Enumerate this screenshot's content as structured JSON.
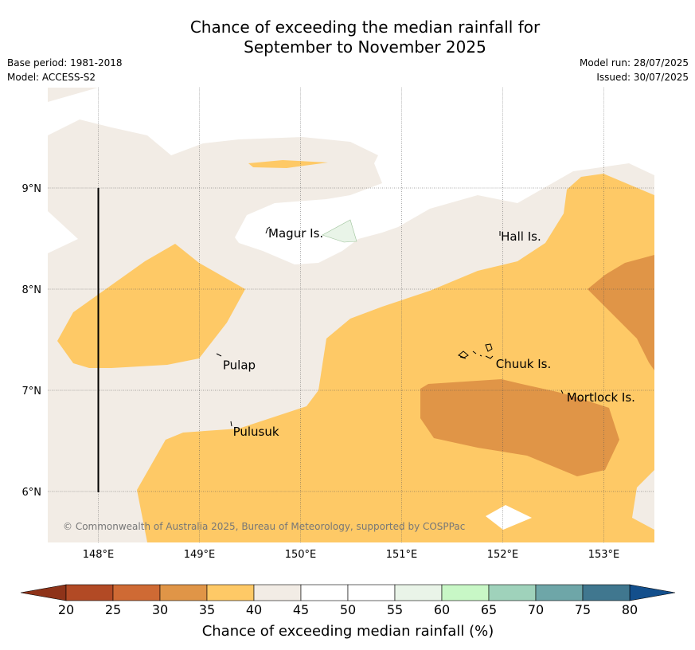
{
  "title": {
    "line1": "Chance of exceeding the median rainfall for",
    "line2": "September to November 2025"
  },
  "meta": {
    "base_period": "Base period: 1981-2018",
    "model": "Model: ACCESS-S2",
    "model_run": "Model run: 28/07/2025",
    "issued": "Issued: 30/07/2025"
  },
  "map": {
    "lon_ticks": [
      {
        "value": 148,
        "label": "148°E"
      },
      {
        "value": 149,
        "label": "149°E"
      },
      {
        "value": 150,
        "label": "150°E"
      },
      {
        "value": 151,
        "label": "151°E"
      },
      {
        "value": 152,
        "label": "152°E"
      },
      {
        "value": 153,
        "label": "153°E"
      }
    ],
    "lat_ticks": [
      {
        "value": 9,
        "label": "9°N"
      },
      {
        "value": 8,
        "label": "8°N"
      },
      {
        "value": 7,
        "label": "7°N"
      },
      {
        "value": 6,
        "label": "6°N"
      }
    ],
    "places": [
      {
        "name": "Magur Is.",
        "lon": 149.65,
        "lat": 8.55
      },
      {
        "name": "Hall Is.",
        "lon": 151.95,
        "lat": 8.52
      },
      {
        "name": "Pulap",
        "lon": 149.2,
        "lat": 7.25
      },
      {
        "name": "Chuuk Is.",
        "lon": 151.9,
        "lat": 7.26
      },
      {
        "name": "Mortlock Is.",
        "lon": 152.6,
        "lat": 6.93
      },
      {
        "name": "Pulusuk",
        "lon": 149.3,
        "lat": 6.59
      }
    ],
    "copyright": "© Commonwealth of Australia 2025, Bureau of Meteorology, supported by COSPPac"
  },
  "colorbar": {
    "labels": [
      "20",
      "25",
      "30",
      "35",
      "40",
      "45",
      "50",
      "55",
      "60",
      "65",
      "70",
      "75",
      "80"
    ],
    "colors": [
      "#b24a25",
      "#cf6a34",
      "#e09547",
      "#fec966",
      "#f2ece5",
      "#ffffff",
      "#ffffff",
      "#e9f4e8",
      "#c8f7c6",
      "#9fd2bb",
      "#6ea6a8",
      "#40778f"
    ],
    "under_color": "#8e3319",
    "over_color": "#134f8c",
    "title": "Chance of exceeding median rainfall (%)"
  }
}
